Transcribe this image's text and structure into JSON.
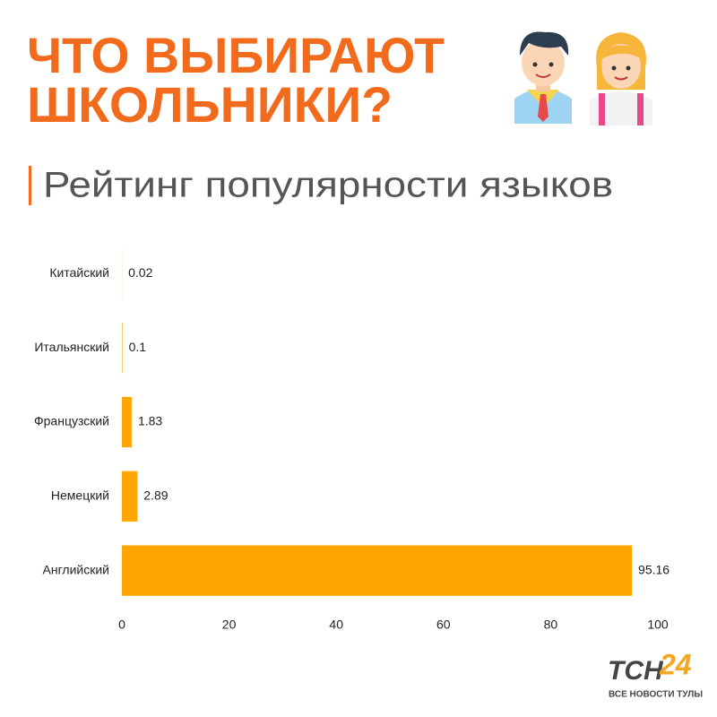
{
  "chart_data": {
    "type": "bar",
    "orientation": "horizontal",
    "title": [
      "ЧТО ВЫБИРАЮТ",
      "ШКОЛЬНИКИ?"
    ],
    "subtitle": "Рейтинг популярности языков",
    "categories": [
      "Китайский",
      "Итальянский",
      "Французский",
      "Немецкий",
      "Английский"
    ],
    "values": [
      0.02,
      0.1,
      1.83,
      2.89,
      95.16
    ],
    "color": "#ffa600",
    "xlim": [
      0,
      100
    ],
    "xticks": [
      0,
      20,
      40,
      60,
      80,
      100
    ],
    "grid": false
  },
  "brand": {
    "name": [
      "ТСН",
      "24"
    ],
    "tagline": "ВСЕ НОВОСТИ ТУЛЫ"
  }
}
